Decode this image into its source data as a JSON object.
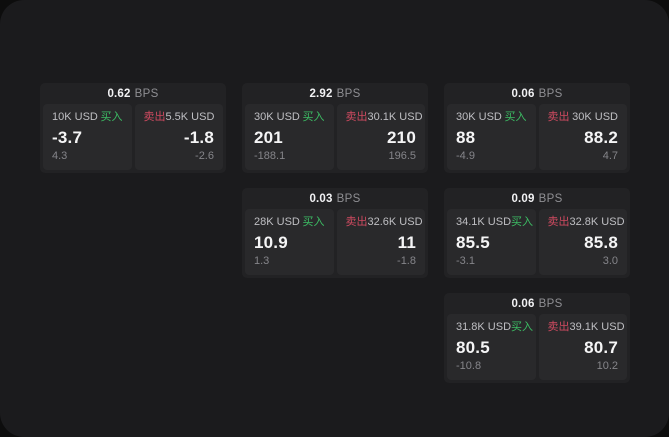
{
  "labels": {
    "bps_unit": "BPS",
    "buy": "买入",
    "sell": "卖出"
  },
  "colors": {
    "buy_green": "#3cbd64",
    "sell_red": "#cf4a60"
  },
  "cards": [
    {
      "bps": "0.62",
      "buy": {
        "amount": "10K USD",
        "value": "-3.7",
        "sub": "4.3"
      },
      "sell": {
        "amount": "5.5K USD",
        "value": "-1.8",
        "sub": "-2.6"
      }
    },
    {
      "bps": "2.92",
      "buy": {
        "amount": "30K USD",
        "value": "201",
        "sub": "-188.1"
      },
      "sell": {
        "amount": "30.1K USD",
        "value": "210",
        "sub": "196.5"
      }
    },
    {
      "bps": "0.06",
      "buy": {
        "amount": "30K USD",
        "value": "88",
        "sub": "-4.9"
      },
      "sell": {
        "amount": "30K USD",
        "value": "88.2",
        "sub": "4.7"
      }
    },
    {
      "bps": "0.03",
      "buy": {
        "amount": "28K USD",
        "value": "10.9",
        "sub": "1.3"
      },
      "sell": {
        "amount": "32.6K USD",
        "value": "11",
        "sub": "-1.8"
      }
    },
    {
      "bps": "0.09",
      "buy": {
        "amount": "34.1K USD",
        "value": "85.5",
        "sub": "-3.1"
      },
      "sell": {
        "amount": "32.8K USD",
        "value": "85.8",
        "sub": "3.0"
      }
    },
    {
      "bps": "0.06",
      "buy": {
        "amount": "31.8K USD",
        "value": "80.5",
        "sub": "-10.8"
      },
      "sell": {
        "amount": "39.1K USD",
        "value": "80.7",
        "sub": "10.2"
      }
    }
  ]
}
